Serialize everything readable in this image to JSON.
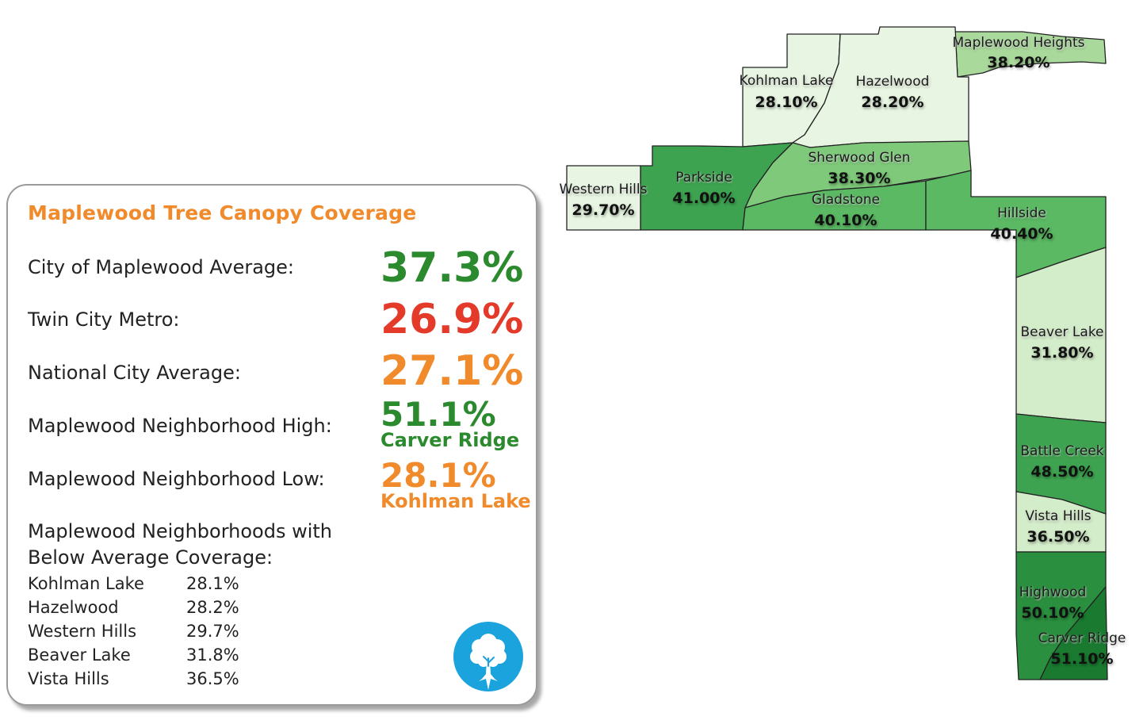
{
  "panel": {
    "title": "Maplewood Tree Canopy Coverage",
    "stats": [
      {
        "label": "City of Maplewood Average:",
        "value": "37.3%",
        "color": "#2b8a2e"
      },
      {
        "label": "Twin City Metro:",
        "value": "26.9%",
        "color": "#e43a2a"
      },
      {
        "label": "National City Average:",
        "value": "27.1%",
        "color": "#f08a2a"
      },
      {
        "label": "Maplewood Neighborhood High:",
        "value": "51.1%",
        "sub": "Carver Ridge",
        "color": "#2b8a2e"
      },
      {
        "label": "Maplewood Neighborhood Low:",
        "value": "28.1%",
        "sub": "Kohlman Lake",
        "color": "#f08a2a"
      }
    ],
    "below_heading_1": "Maplewood Neighborhoods with",
    "below_heading_2": "Below Average Coverage:",
    "below_list": [
      {
        "name": "Kohlman Lake",
        "pct": "28.1%"
      },
      {
        "name": "Hazelwood",
        "pct": "28.2%"
      },
      {
        "name": "Western Hills",
        "pct": "29.7%"
      },
      {
        "name": "Beaver Lake",
        "pct": "31.8%"
      },
      {
        "name": "Vista Hills",
        "pct": "36.5%"
      }
    ],
    "logo_icon": "tree-icon",
    "logo_color": "#1aa3dc"
  },
  "map": {
    "neighborhoods": [
      {
        "id": "maplewood-heights",
        "name": "Maplewood Heights",
        "pct": "38.20%"
      },
      {
        "id": "kohlman-lake",
        "name": "Kohlman Lake",
        "pct": "28.10%"
      },
      {
        "id": "hazelwood",
        "name": "Hazelwood",
        "pct": "28.20%"
      },
      {
        "id": "sherwood-glen",
        "name": "Sherwood Glen",
        "pct": "38.30%"
      },
      {
        "id": "parkside",
        "name": "Parkside",
        "pct": "41.00%"
      },
      {
        "id": "western-hills",
        "name": "Western Hills",
        "pct": "29.70%"
      },
      {
        "id": "gladstone",
        "name": "Gladstone",
        "pct": "40.10%"
      },
      {
        "id": "hillside",
        "name": "Hillside",
        "pct": "40.40%"
      },
      {
        "id": "beaver-lake",
        "name": "Beaver Lake",
        "pct": "31.80%"
      },
      {
        "id": "battle-creek",
        "name": "Battle Creek",
        "pct": "48.50%"
      },
      {
        "id": "vista-hills",
        "name": "Vista Hills",
        "pct": "36.50%"
      },
      {
        "id": "highwood",
        "name": "Highwood",
        "pct": "50.10%"
      },
      {
        "id": "carver-ridge",
        "name": "Carver Ridge",
        "pct": "51.10%"
      }
    ],
    "fill_colors": {
      "lightest": "#e8f5e2",
      "light": "#d3ecc9",
      "mid_light": "#a9d99b",
      "mid": "#7ec97a",
      "mid_dark": "#5bb863",
      "dark": "#3ea350",
      "darker": "#2a8f3e",
      "darkest": "#1a7a30"
    }
  }
}
